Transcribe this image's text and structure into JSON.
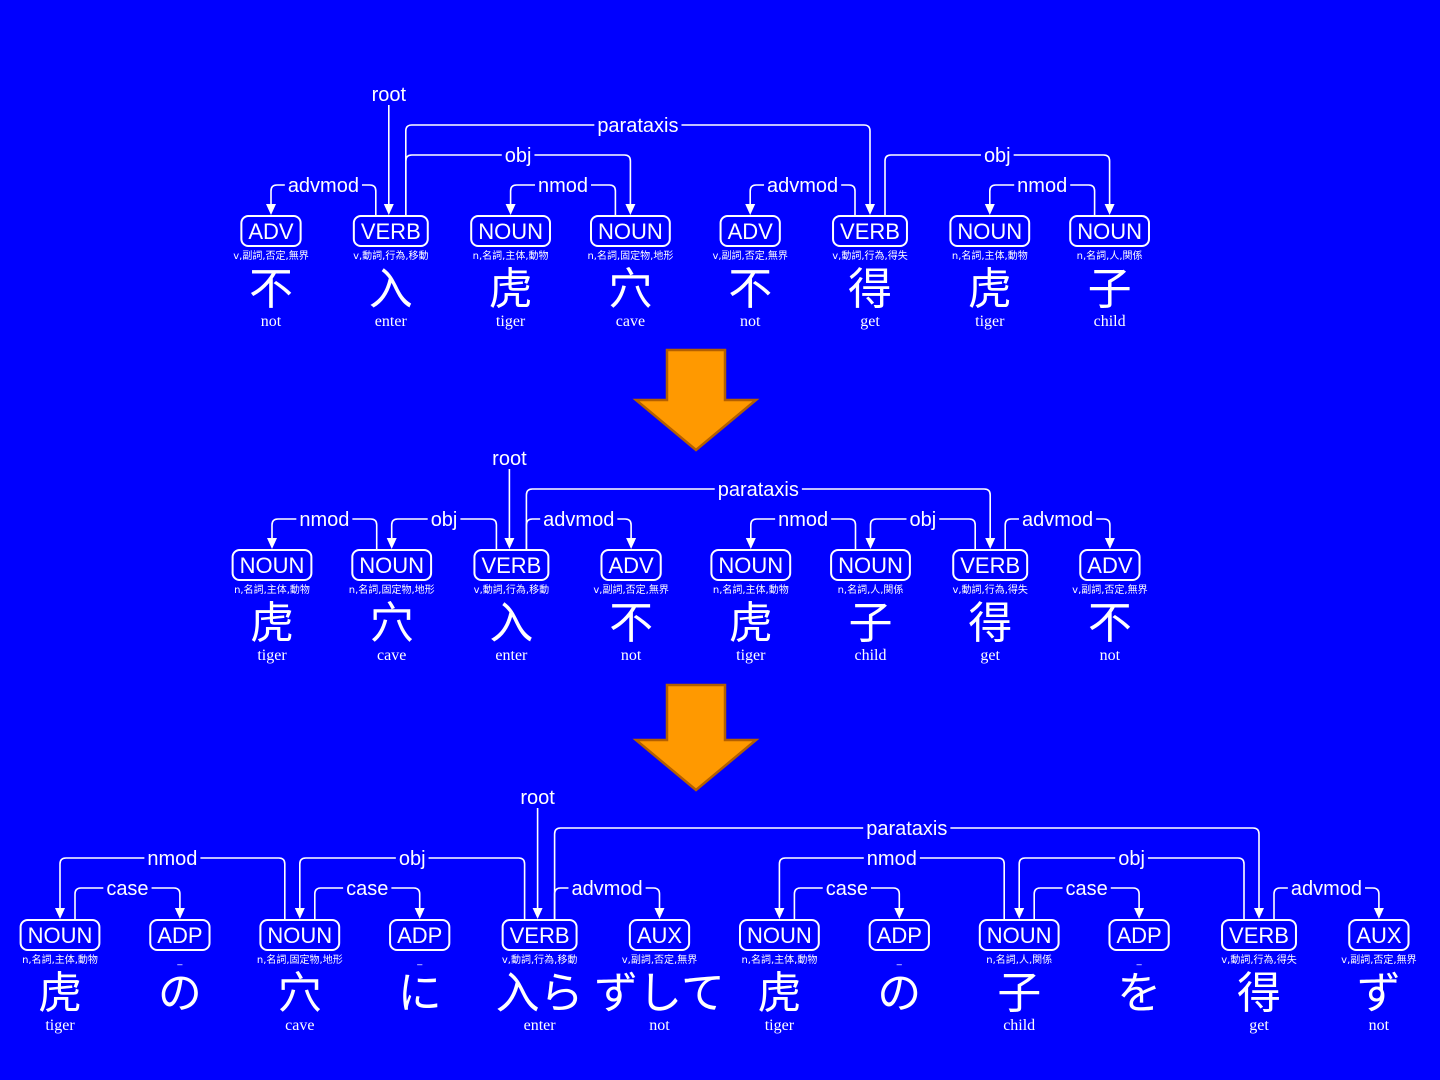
{
  "colors": {
    "background": "#0000ff",
    "foreground": "#ffffff",
    "arrow": "#ff9900"
  },
  "diagrams": [
    {
      "tokens": [
        {
          "pos": "ADV",
          "feat": "v,副詞,否定,無界",
          "word": "不",
          "gloss": "not"
        },
        {
          "pos": "VERB",
          "feat": "v,動詞,行為,移動",
          "word": "入",
          "gloss": "enter"
        },
        {
          "pos": "NOUN",
          "feat": "n,名詞,主体,動物",
          "word": "虎",
          "gloss": "tiger"
        },
        {
          "pos": "NOUN",
          "feat": "n,名詞,固定物,地形",
          "word": "穴",
          "gloss": "cave"
        },
        {
          "pos": "ADV",
          "feat": "v,副詞,否定,無界",
          "word": "不",
          "gloss": "not"
        },
        {
          "pos": "VERB",
          "feat": "v,動詞,行為,得失",
          "word": "得",
          "gloss": "get"
        },
        {
          "pos": "NOUN",
          "feat": "n,名詞,主体,動物",
          "word": "虎",
          "gloss": "tiger"
        },
        {
          "pos": "NOUN",
          "feat": "n,名詞,人,関係",
          "word": "子",
          "gloss": "child"
        }
      ],
      "arcs": [
        {
          "label": "advmod",
          "head": 1,
          "dep": 0
        },
        {
          "label": "nmod",
          "head": 3,
          "dep": 2
        },
        {
          "label": "obj",
          "head": 1,
          "dep": 3
        },
        {
          "label": "advmod",
          "head": 5,
          "dep": 4
        },
        {
          "label": "nmod",
          "head": 7,
          "dep": 6
        },
        {
          "label": "obj",
          "head": 5,
          "dep": 7
        },
        {
          "label": "parataxis",
          "head": 1,
          "dep": 5
        }
      ],
      "root": {
        "label": "root",
        "token": 1
      }
    },
    {
      "tokens": [
        {
          "pos": "NOUN",
          "feat": "n,名詞,主体,動物",
          "word": "虎",
          "gloss": "tiger"
        },
        {
          "pos": "NOUN",
          "feat": "n,名詞,固定物,地形",
          "word": "穴",
          "gloss": "cave"
        },
        {
          "pos": "VERB",
          "feat": "v,動詞,行為,移動",
          "word": "入",
          "gloss": "enter"
        },
        {
          "pos": "ADV",
          "feat": "v,副詞,否定,無界",
          "word": "不",
          "gloss": "not"
        },
        {
          "pos": "NOUN",
          "feat": "n,名詞,主体,動物",
          "word": "虎",
          "gloss": "tiger"
        },
        {
          "pos": "NOUN",
          "feat": "n,名詞,人,関係",
          "word": "子",
          "gloss": "child"
        },
        {
          "pos": "VERB",
          "feat": "v,動詞,行為,得失",
          "word": "得",
          "gloss": "get"
        },
        {
          "pos": "ADV",
          "feat": "v,副詞,否定,無界",
          "word": "不",
          "gloss": "not"
        }
      ],
      "arcs": [
        {
          "label": "nmod",
          "head": 1,
          "dep": 0
        },
        {
          "label": "obj",
          "head": 2,
          "dep": 1
        },
        {
          "label": "advmod",
          "head": 2,
          "dep": 3
        },
        {
          "label": "nmod",
          "head": 5,
          "dep": 4
        },
        {
          "label": "obj",
          "head": 6,
          "dep": 5
        },
        {
          "label": "advmod",
          "head": 6,
          "dep": 7
        },
        {
          "label": "parataxis",
          "head": 2,
          "dep": 6
        }
      ],
      "root": {
        "label": "root",
        "token": 2
      }
    },
    {
      "tokens": [
        {
          "pos": "NOUN",
          "feat": "n,名詞,主体,動物",
          "word": "虎",
          "gloss": "tiger"
        },
        {
          "pos": "ADP",
          "feat": "_",
          "word": "の",
          "gloss": ""
        },
        {
          "pos": "NOUN",
          "feat": "n,名詞,固定物,地形",
          "word": "穴",
          "gloss": "cave"
        },
        {
          "pos": "ADP",
          "feat": "_",
          "word": "に",
          "gloss": ""
        },
        {
          "pos": "VERB",
          "feat": "v,動詞,行為,移動",
          "word": "入ら",
          "gloss": "enter"
        },
        {
          "pos": "AUX",
          "feat": "v,副詞,否定,無界",
          "word": "ずして",
          "gloss": "not"
        },
        {
          "pos": "NOUN",
          "feat": "n,名詞,主体,動物",
          "word": "虎",
          "gloss": "tiger"
        },
        {
          "pos": "ADP",
          "feat": "_",
          "word": "の",
          "gloss": ""
        },
        {
          "pos": "NOUN",
          "feat": "n,名詞,人,関係",
          "word": "子",
          "gloss": "child"
        },
        {
          "pos": "ADP",
          "feat": "_",
          "word": "を",
          "gloss": ""
        },
        {
          "pos": "VERB",
          "feat": "v,動詞,行為,得失",
          "word": "得",
          "gloss": "get"
        },
        {
          "pos": "AUX",
          "feat": "v,副詞,否定,無界",
          "word": "ず",
          "gloss": "not"
        }
      ],
      "arcs": [
        {
          "label": "case",
          "head": 0,
          "dep": 1
        },
        {
          "label": "case",
          "head": 2,
          "dep": 3
        },
        {
          "label": "advmod",
          "head": 4,
          "dep": 5
        },
        {
          "label": "case",
          "head": 6,
          "dep": 7
        },
        {
          "label": "case",
          "head": 8,
          "dep": 9
        },
        {
          "label": "advmod",
          "head": 10,
          "dep": 11
        },
        {
          "label": "nmod",
          "head": 2,
          "dep": 0
        },
        {
          "label": "obj",
          "head": 4,
          "dep": 2
        },
        {
          "label": "nmod",
          "head": 8,
          "dep": 6
        },
        {
          "label": "obj",
          "head": 10,
          "dep": 8
        },
        {
          "label": "parataxis",
          "head": 4,
          "dep": 10
        }
      ],
      "root": {
        "label": "root",
        "token": 4
      }
    }
  ]
}
